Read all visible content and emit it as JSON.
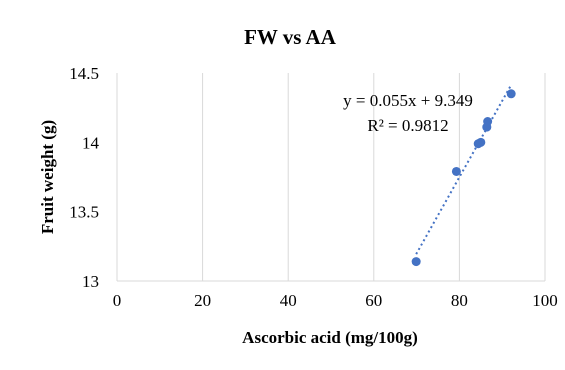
{
  "chart_data": {
    "type": "scatter",
    "title": "FW vs AA",
    "xlabel": "Ascorbic acid (mg/100g)",
    "ylabel": "Fruit weight (g)",
    "xlim": [
      0,
      100
    ],
    "ylim": [
      13,
      14.5
    ],
    "xticks": [
      0,
      20,
      40,
      60,
      80,
      100
    ],
    "yticks": [
      13,
      13.5,
      14,
      14.5
    ],
    "xtick_labels": [
      "0",
      "20",
      "40",
      "60",
      "80",
      "100"
    ],
    "ytick_labels": [
      "13",
      "13.5",
      "14",
      "14.5"
    ],
    "grid": "vertical",
    "points": [
      {
        "x": 69.9,
        "y": 13.14
      },
      {
        "x": 79.3,
        "y": 13.79
      },
      {
        "x": 84.4,
        "y": 13.99
      },
      {
        "x": 85.0,
        "y": 14.0
      },
      {
        "x": 86.4,
        "y": 14.11
      },
      {
        "x": 86.6,
        "y": 14.15
      },
      {
        "x": 92.1,
        "y": 14.35
      }
    ],
    "trendline": {
      "type": "linear",
      "slope": 0.055,
      "intercept": 9.349,
      "x_range": [
        69.9,
        92.1
      ],
      "equation_label": "y = 0.055x + 9.349",
      "r2_label": "R² = 0.9812"
    },
    "marker_color": "#4472c4"
  }
}
